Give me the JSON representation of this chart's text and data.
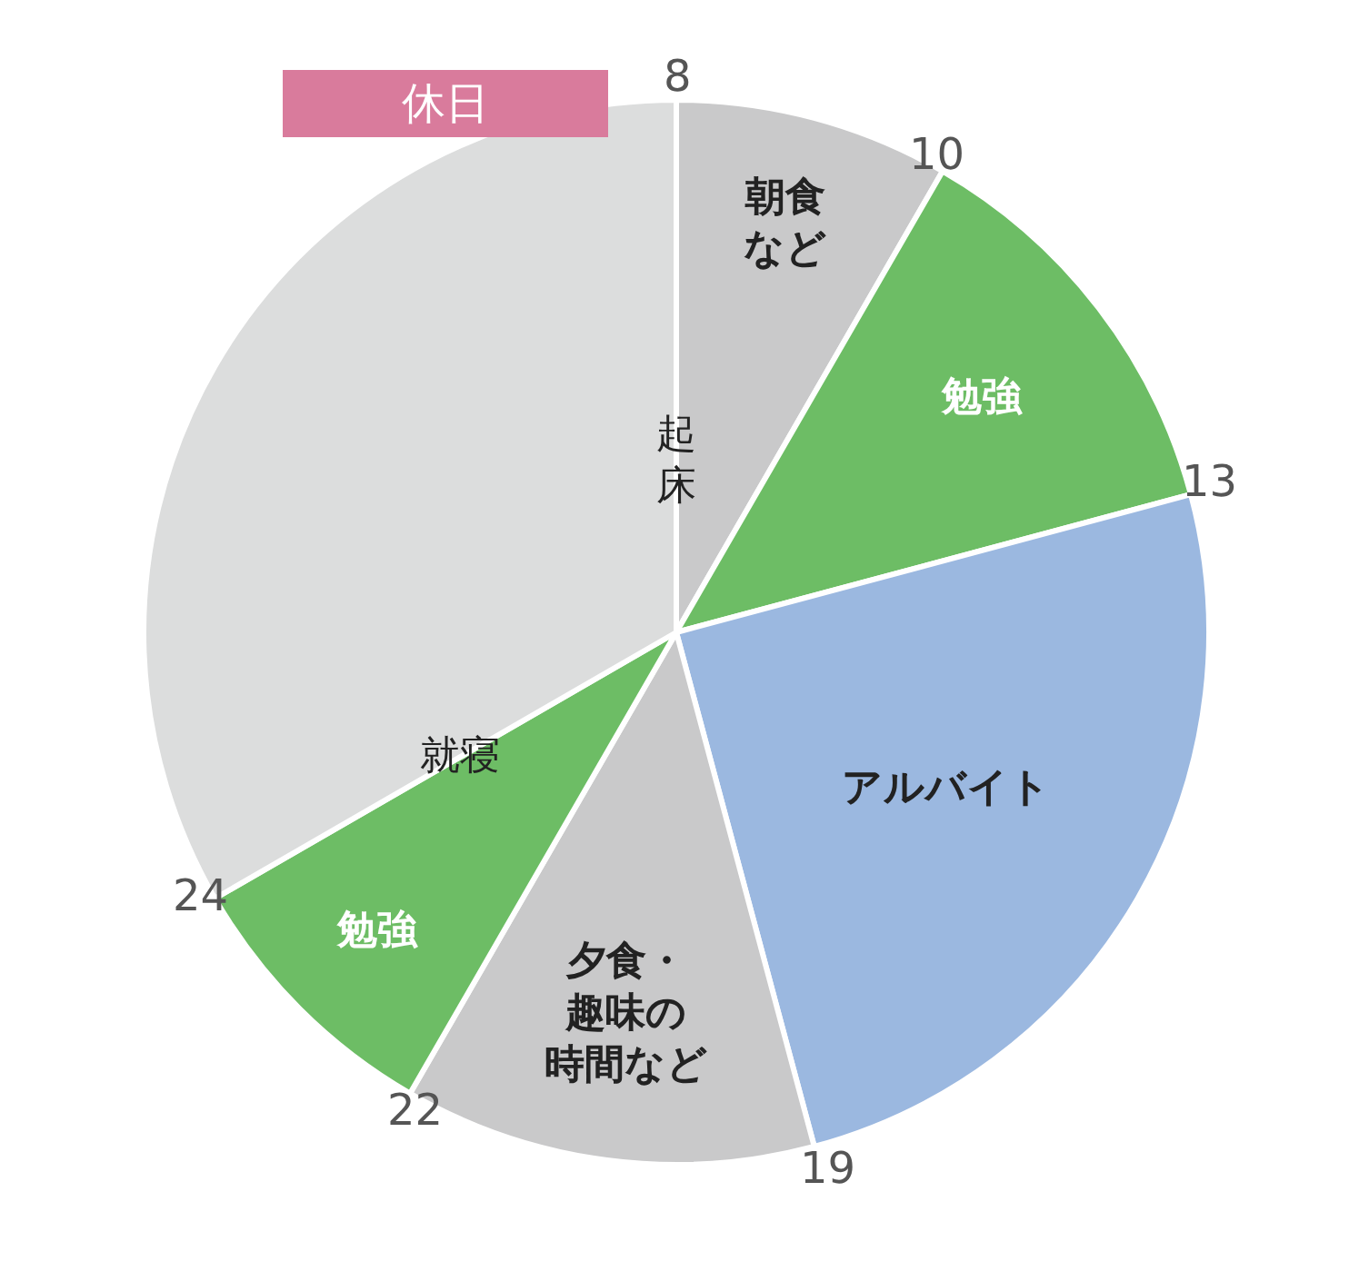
{
  "chart_data": {
    "type": "pie",
    "title": "休日",
    "categories": [
      "朝食など",
      "勉強",
      "アルバイト",
      "夕食・趣味の時間など",
      "勉強",
      null
    ],
    "values": [
      8.33,
      12.5,
      25,
      12.5,
      8.34,
      33.33
    ],
    "colors": [
      "#c9c9ca",
      "#6dbd65",
      "#9bb8e0",
      "#c9c9ca",
      "#6dbd65",
      "#dcdddd"
    ],
    "annotations": [
      "8",
      "10",
      "13",
      "19",
      "22",
      "24",
      "起床",
      "就寝"
    ],
    "legend": false
  }
}
